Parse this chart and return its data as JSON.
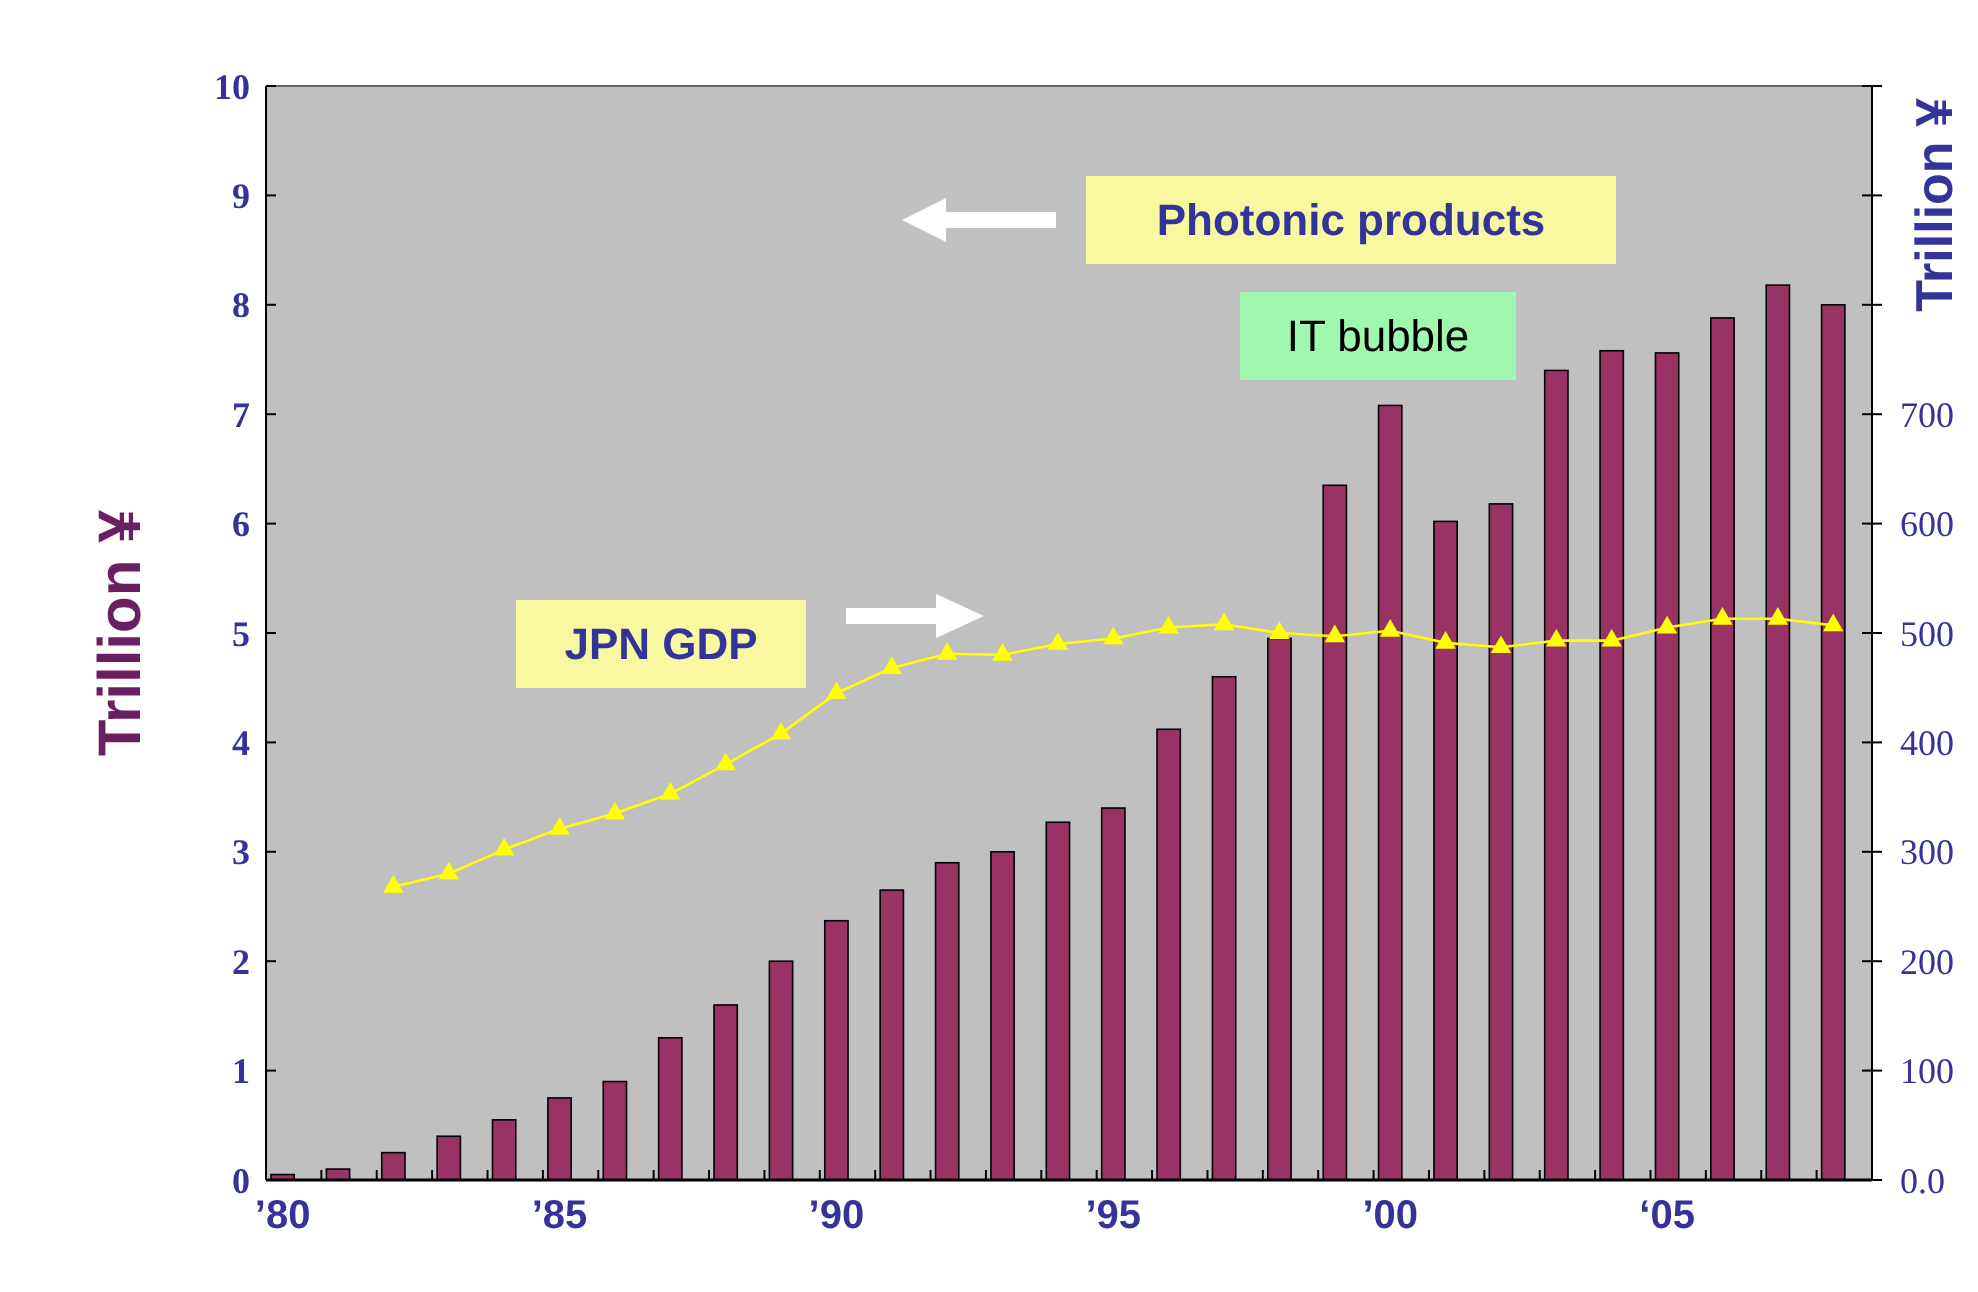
{
  "chart_data": {
    "type": "bar",
    "categories": [
      "’80",
      null,
      null,
      null,
      null,
      "’85",
      null,
      null,
      null,
      null,
      "’90",
      null,
      null,
      null,
      null,
      "’95",
      null,
      null,
      null,
      null,
      "’00",
      null,
      null,
      null,
      null,
      "‘05",
      null,
      null,
      null
    ],
    "series": [
      {
        "color": "#993366",
        "values": [
          0.05,
          0.1,
          0.25,
          0.4,
          0.55,
          0.75,
          0.9,
          1.3,
          1.6,
          2.0,
          2.37,
          2.65,
          2.9,
          3.0,
          3.27,
          3.4,
          4.12,
          4.6,
          4.95,
          6.35,
          7.08,
          6.02,
          6.18,
          7.4,
          7.58,
          7.56,
          7.88,
          8.18,
          8.0
        ]
      },
      {
        "type": "line",
        "axis": "y2",
        "color": "#ffff00",
        "marker": "triangle",
        "values": [
          null,
          null,
          268,
          280,
          302,
          321,
          335,
          353,
          380,
          408,
          445,
          468,
          481,
          480,
          490,
          495,
          505,
          508,
          500,
          497,
          502,
          491,
          487,
          493,
          493,
          505,
          513,
          513,
          507
        ]
      }
    ],
    "ylabel": "Trillion ¥",
    "y2label": "Trillion ¥",
    "ylim": [
      0,
      10
    ],
    "yticks": [
      0,
      1,
      2,
      3,
      4,
      5,
      6,
      7,
      8,
      9,
      10
    ],
    "y2lim": [
      0,
      1000
    ],
    "y2ticks": [
      {
        "value": 0,
        "label": "0.0"
      },
      100,
      200,
      300,
      400,
      500,
      600,
      700,
      {
        "value": 800,
        "label": null
      },
      {
        "value": 900,
        "label": null
      },
      {
        "value": 1000,
        "label": null
      }
    ],
    "annotations": [
      "Photonic products",
      "JPN GDP",
      "IT bubble"
    ],
    "grid": false
  }
}
